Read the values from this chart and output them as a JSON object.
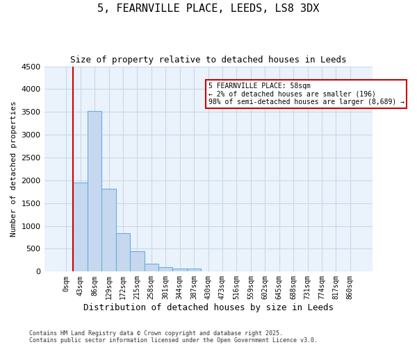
{
  "title_line1": "5, FEARNVILLE PLACE, LEEDS, LS8 3DX",
  "title_line2": "Size of property relative to detached houses in Leeds",
  "xlabel": "Distribution of detached houses by size in Leeds",
  "ylabel": "Number of detached properties",
  "categories": [
    "0sqm",
    "43sqm",
    "86sqm",
    "129sqm",
    "172sqm",
    "215sqm",
    "258sqm",
    "301sqm",
    "344sqm",
    "387sqm",
    "430sqm",
    "473sqm",
    "516sqm",
    "559sqm",
    "602sqm",
    "645sqm",
    "688sqm",
    "731sqm",
    "774sqm",
    "817sqm",
    "860sqm"
  ],
  "values": [
    5,
    1950,
    3520,
    1820,
    840,
    440,
    175,
    100,
    70,
    60,
    0,
    0,
    0,
    0,
    0,
    0,
    0,
    0,
    0,
    0,
    0
  ],
  "bar_color": "#c5d8f0",
  "bar_edge_color": "#6aaed6",
  "grid_color": "#c8d8e8",
  "background_color": "#eaf2fb",
  "annotation_text": "5 FEARNVILLE PLACE: 58sqm\n← 2% of detached houses are smaller (196)\n98% of semi-detached houses are larger (8,689) →",
  "annotation_box_color": "#ffffff",
  "annotation_box_edge_color": "#cc0000",
  "vline_x": 1,
  "vline_color": "#cc0000",
  "ylim": [
    0,
    4500
  ],
  "yticks": [
    0,
    500,
    1000,
    1500,
    2000,
    2500,
    3000,
    3500,
    4000,
    4500
  ],
  "footer_line1": "Contains HM Land Registry data © Crown copyright and database right 2025.",
  "footer_line2": "Contains public sector information licensed under the Open Government Licence v3.0."
}
